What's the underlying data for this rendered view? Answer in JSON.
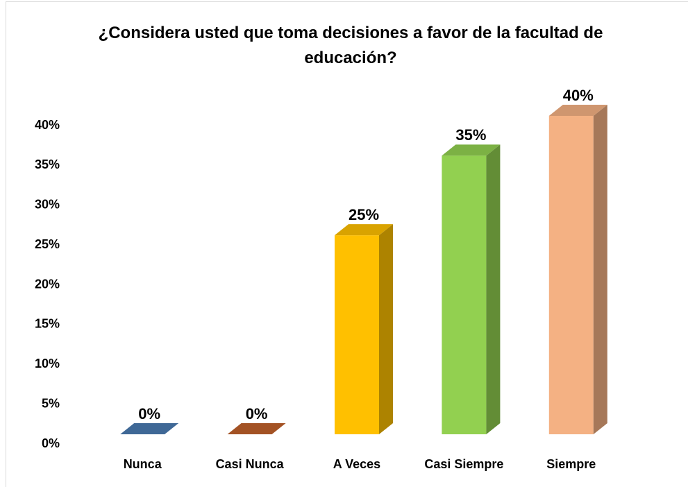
{
  "chart_data": {
    "type": "bar3d",
    "title": "¿Considera usted que toma decisiones a favor de la facultad de educación?",
    "categories": [
      "Nunca",
      "Casi Nunca",
      "A Veces",
      "Casi Siempre",
      "Siempre"
    ],
    "values": [
      0,
      0,
      25,
      35,
      40
    ],
    "value_labels": [
      "0%",
      "0%",
      "25%",
      "35%",
      "40%"
    ],
    "colors": [
      "#4a7ab0",
      "#c0602a",
      "#ffc000",
      "#92d050",
      "#f4b183"
    ],
    "ylim": [
      0,
      40
    ],
    "yticks": [
      {
        "value": 0,
        "label": "0%"
      },
      {
        "value": 5,
        "label": "5%"
      },
      {
        "value": 10,
        "label": "10%"
      },
      {
        "value": 15,
        "label": "15%"
      },
      {
        "value": 20,
        "label": "20%"
      },
      {
        "value": 25,
        "label": "25%"
      },
      {
        "value": 30,
        "label": "30%"
      },
      {
        "value": 35,
        "label": "35%"
      },
      {
        "value": 40,
        "label": "40%"
      }
    ],
    "grid": false
  }
}
